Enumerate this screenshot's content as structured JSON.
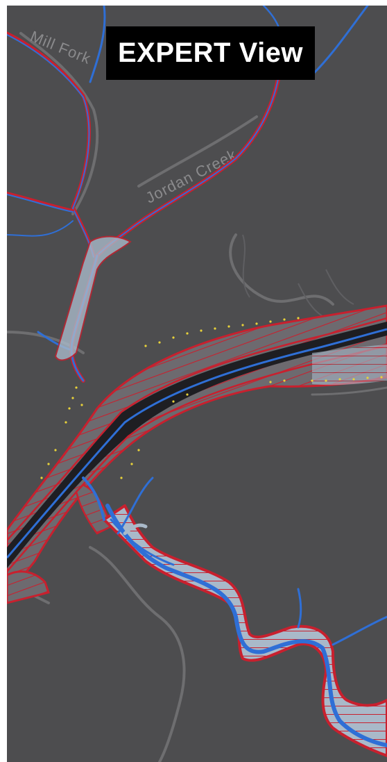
{
  "view_title": "EXPERT View",
  "map_labels": {
    "mill_fork": "Mill Fork",
    "jordan_creek": "Jordan Creek"
  },
  "colors": {
    "background": "#4d4d4f",
    "road": "#6e6e70",
    "boundary_red": "#c8202e",
    "stream_blue": "#2f6fd6",
    "floodplain_fill": "#a9b9c9",
    "channel_dark": "#1e1e22",
    "point_yellow": "#e8d23a"
  },
  "legend_icons": [
    "stream-line-icon",
    "flood-boundary-icon",
    "channel-icon"
  ]
}
